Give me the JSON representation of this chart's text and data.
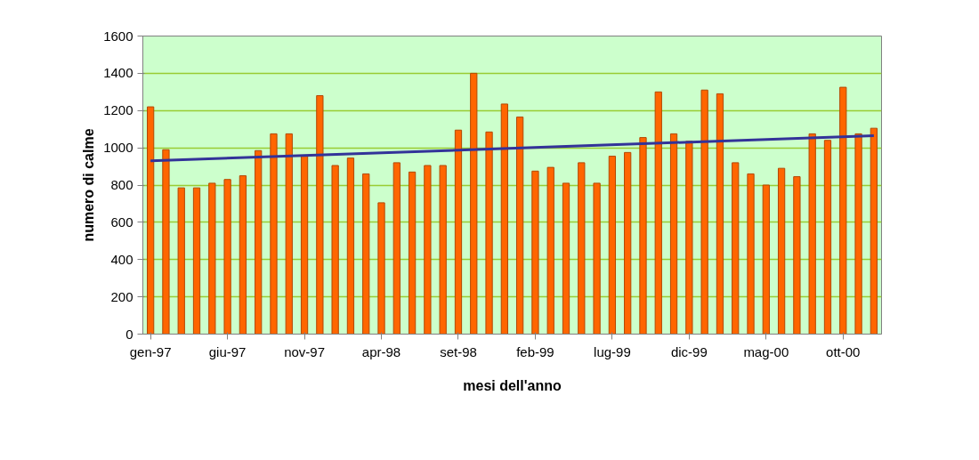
{
  "chart_data": {
    "type": "bar",
    "xlabel": "mesi dell'anno",
    "ylabel": "numero di calme",
    "categories": [
      "gen-97",
      null,
      null,
      null,
      null,
      "giu-97",
      null,
      null,
      null,
      null,
      "nov-97",
      null,
      null,
      null,
      null,
      "apr-98",
      null,
      null,
      null,
      null,
      "set-98",
      null,
      null,
      null,
      null,
      "feb-99",
      null,
      null,
      null,
      null,
      "lug-99",
      null,
      null,
      null,
      null,
      "dic-99",
      null,
      null,
      null,
      null,
      "mag-00",
      null,
      null,
      null,
      null,
      "ott-00",
      null,
      null
    ],
    "series": [
      {
        "color": "#ff6600",
        "values": [
          1220,
          990,
          785,
          785,
          810,
          830,
          850,
          985,
          1075,
          1075,
          960,
          1280,
          905,
          945,
          860,
          705,
          920,
          870,
          905,
          905,
          1095,
          1400,
          1085,
          1235,
          1165,
          875,
          895,
          810,
          920,
          810,
          955,
          975,
          1055,
          1300,
          1075,
          1035,
          1310,
          1290,
          920,
          860,
          800,
          890,
          845,
          1075,
          1040,
          1325,
          1075,
          1105
        ]
      },
      {
        "type": "line",
        "color": "#333399",
        "values": [
          930,
          null,
          null,
          null,
          null,
          null,
          null,
          null,
          null,
          null,
          null,
          null,
          null,
          null,
          null,
          null,
          null,
          null,
          null,
          null,
          null,
          null,
          null,
          null,
          null,
          null,
          null,
          null,
          null,
          null,
          null,
          null,
          null,
          null,
          null,
          null,
          null,
          null,
          null,
          null,
          null,
          null,
          null,
          null,
          null,
          null,
          null,
          1065
        ]
      }
    ],
    "ylim": [
      0,
      1600
    ],
    "yticks": [
      0,
      200,
      400,
      600,
      800,
      1000,
      1200,
      1400,
      1600
    ],
    "grid": "y"
  }
}
